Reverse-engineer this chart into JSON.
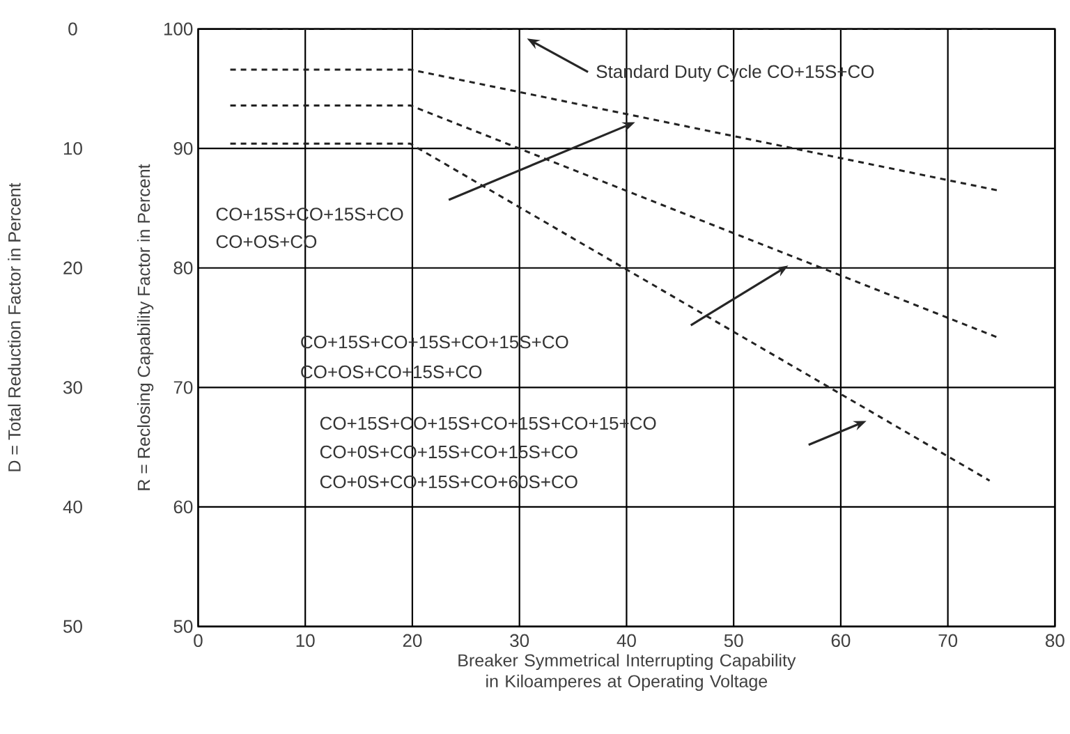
{
  "chart_data": {
    "type": "line",
    "xlabel": "Breaker Symmetrical Interrupting Capability in Kiloamperes at Operating Voltage",
    "ylabel": "R = Reclosing Capability Factor in Percent",
    "y2label": "D = Total Reduction Factor in Percent",
    "xlim": [
      0,
      80
    ],
    "xticks": [
      0,
      10,
      20,
      30,
      40,
      50,
      60,
      70,
      80
    ],
    "ylim": [
      50,
      100
    ],
    "yticks": [
      50,
      60,
      70,
      80,
      90,
      100
    ],
    "y2lim": [
      50,
      0
    ],
    "y2ticks": [
      0,
      10,
      20,
      30,
      40,
      50
    ],
    "grid": true,
    "marker": "none",
    "line_style": "dashed",
    "series": [
      {
        "color": "#222222",
        "x": [
          3,
          74.5
        ],
        "values": [
          100,
          100
        ]
      },
      {
        "color": "#222222",
        "x": [
          3,
          19.8,
          74.6
        ],
        "values": [
          96.6,
          96.6,
          86.5
        ]
      },
      {
        "color": "#222222",
        "x": [
          3,
          19.8,
          74.6
        ],
        "values": [
          93.6,
          93.6,
          74.2
        ]
      },
      {
        "color": "#222222",
        "x": [
          3,
          19.8,
          73.9
        ],
        "values": [
          90.4,
          90.4,
          62.2
        ]
      }
    ],
    "annotations": [
      "Standard Duty Cycle CO+15S+CO",
      "CO+15S+CO+15S+CO",
      "CO+OS+CO",
      "CO+15S+CO+15S+CO+15S+CO",
      "CO+OS+CO+15S+CO",
      "CO+15S+CO+15S+CO+15S+CO+15+CO",
      "CO+0S+CO+15S+CO+15S+CO",
      "CO+0S+CO+15S+CO+60S+CO"
    ]
  }
}
